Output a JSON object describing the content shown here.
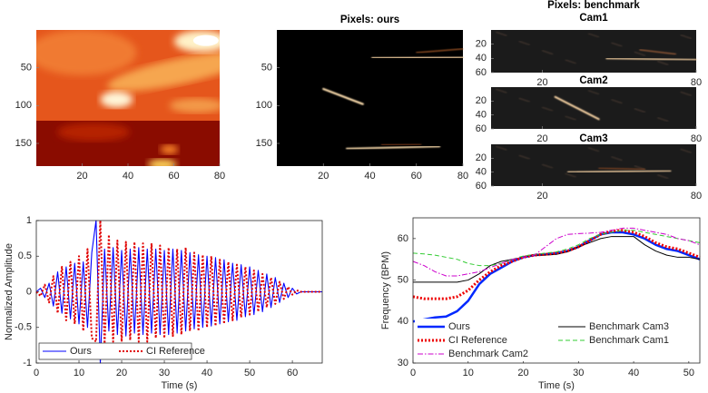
{
  "chart_data": [
    {
      "type": "heatmap",
      "colormap": "hot",
      "xlim": [
        0,
        80
      ],
      "ylim": [
        0,
        180
      ],
      "y_reversed": true,
      "xticks": [
        20,
        40,
        60,
        80
      ],
      "yticks": [
        50,
        100,
        150
      ]
    },
    {
      "type": "heatmap",
      "colormap": "hot",
      "title": "Pixels: ours",
      "xlim": [
        0,
        80
      ],
      "ylim": [
        0,
        180
      ],
      "y_reversed": true,
      "xticks": [
        20,
        40,
        60,
        80
      ],
      "yticks": [
        50,
        100,
        150
      ]
    },
    {
      "type": "heatmap",
      "colormap": "hot",
      "group_title": "Pixels: benchmark",
      "title": "Cam1",
      "xlim": [
        0,
        80
      ],
      "ylim": [
        0,
        60
      ],
      "y_reversed": true,
      "xticks": [
        20,
        80
      ],
      "yticks": [
        20,
        40,
        60
      ]
    },
    {
      "type": "heatmap",
      "colormap": "hot",
      "title": "Cam2",
      "xlim": [
        0,
        80
      ],
      "ylim": [
        0,
        60
      ],
      "y_reversed": true,
      "xticks": [
        20,
        80
      ],
      "yticks": [
        20,
        40,
        60
      ]
    },
    {
      "type": "heatmap",
      "colormap": "hot",
      "title": "Cam3",
      "xlim": [
        0,
        80
      ],
      "ylim": [
        0,
        60
      ],
      "y_reversed": true,
      "xticks": [
        20,
        80
      ],
      "yticks": [
        20,
        40,
        60
      ]
    },
    {
      "type": "line",
      "x_label": "Time (s)",
      "y_label": "Normalized Amplitude",
      "legend": "lower left",
      "legend_columns": 2,
      "xlim": [
        0,
        67
      ],
      "ylim": [
        -1,
        1
      ],
      "xticks": [
        0,
        10,
        20,
        30,
        40,
        50,
        60
      ],
      "yticks": [
        -1,
        -0.5,
        0,
        0.5,
        1
      ],
      "x": [
        0,
        1,
        2,
        3,
        4,
        5,
        6,
        7,
        8,
        9,
        10,
        11,
        12,
        13,
        14,
        15,
        16,
        17,
        18,
        19,
        20,
        21,
        22,
        23,
        24,
        25,
        26,
        27,
        28,
        29,
        30,
        31,
        32,
        33,
        34,
        35,
        36,
        37,
        38,
        39,
        40,
        41,
        42,
        43,
        44,
        45,
        46,
        47,
        48,
        49,
        50,
        51,
        52,
        53,
        54,
        55,
        56,
        57,
        58,
        59,
        60,
        61,
        62,
        63,
        64,
        65,
        66,
        67
      ],
      "series": [
        {
          "name": "Ours",
          "color": "#0000ff",
          "style": "solid",
          "width": 1.1,
          "values": [
            0,
            0.05,
            -0.08,
            0.12,
            -0.2,
            0.28,
            -0.3,
            0.35,
            -0.38,
            0.4,
            -0.45,
            0.42,
            -0.5,
            0.55,
            1,
            -1,
            0.6,
            -0.55,
            0.62,
            -0.6,
            0.58,
            -0.62,
            0.6,
            -0.58,
            0.62,
            -0.6,
            0.6,
            -0.58,
            0.6,
            -0.6,
            0.58,
            -0.6,
            0.6,
            -0.58,
            0.58,
            -0.55,
            0.55,
            -0.52,
            0.52,
            -0.5,
            0.5,
            -0.48,
            0.48,
            -0.45,
            0.45,
            -0.42,
            0.4,
            -0.4,
            0.38,
            -0.35,
            0.35,
            -0.32,
            0.3,
            -0.28,
            0.25,
            -0.22,
            0.2,
            -0.15,
            0.12,
            -0.08,
            0.05,
            -0.03,
            0,
            0,
            0,
            0,
            0,
            0
          ]
        },
        {
          "name": "CI Reference",
          "color": "#e00000",
          "style": "dotted",
          "width": 2,
          "values": [
            0,
            -0.06,
            0.1,
            -0.15,
            0.22,
            -0.3,
            0.35,
            -0.4,
            0.42,
            -0.45,
            0.5,
            -0.55,
            0.6,
            -0.65,
            -0.7,
            1,
            -0.75,
            0.8,
            -0.7,
            0.72,
            -0.7,
            0.7,
            -0.68,
            0.7,
            -0.7,
            0.68,
            -0.7,
            0.68,
            -0.65,
            0.65,
            -0.65,
            0.62,
            -0.62,
            0.6,
            -0.6,
            0.62,
            -0.55,
            0.55,
            -0.55,
            0.52,
            -0.5,
            0.5,
            -0.48,
            0.45,
            -0.45,
            0.42,
            -0.4,
            0.38,
            -0.36,
            0.35,
            -0.32,
            0.3,
            -0.28,
            0.25,
            -0.22,
            0.2,
            -0.17,
            0.14,
            -0.1,
            0.07,
            -0.04,
            0.02,
            0,
            0,
            0,
            0,
            0,
            0
          ]
        }
      ]
    },
    {
      "type": "line",
      "x_label": "Time (s)",
      "y_label": "Frequency (BPM)",
      "legend": "lower right",
      "legend_columns": 2,
      "xlim": [
        0,
        52
      ],
      "ylim": [
        30,
        65
      ],
      "xticks": [
        0,
        10,
        20,
        30,
        40,
        50
      ],
      "yticks": [
        30,
        40,
        50,
        60
      ],
      "x": [
        0,
        2,
        4,
        6,
        8,
        10,
        12,
        14,
        16,
        18,
        20,
        22,
        24,
        26,
        28,
        30,
        32,
        34,
        36,
        38,
        40,
        42,
        44,
        46,
        48,
        50,
        52
      ],
      "series": [
        {
          "name": "Ours",
          "color": "#0028ff",
          "style": "solid",
          "width": 2.5,
          "values": [
            40,
            40.5,
            41,
            41.2,
            42.5,
            45,
            49,
            51.5,
            53,
            54.5,
            55.5,
            56,
            56.2,
            56.5,
            57,
            58,
            59.5,
            61,
            61.5,
            61.5,
            61,
            60,
            58.5,
            57.5,
            57,
            56,
            55
          ]
        },
        {
          "name": "Benchmark Cam3",
          "color": "#000000",
          "style": "solid",
          "width": 1,
          "values": [
            49.5,
            49.5,
            49.5,
            49.5,
            49.5,
            50,
            51.5,
            53.5,
            54.5,
            55,
            55.5,
            56,
            56,
            56.2,
            56.8,
            58,
            59,
            60,
            60.5,
            60.5,
            60.5,
            58.5,
            57,
            56,
            55.5,
            55.5,
            55
          ]
        },
        {
          "name": "CI Reference",
          "color": "#ee0000",
          "style": "dotted",
          "width": 3,
          "values": [
            46,
            45.5,
            45.5,
            45.5,
            46,
            47.5,
            50,
            52,
            53.5,
            54.5,
            55.5,
            56,
            56.2,
            56.5,
            57,
            58,
            59.5,
            61,
            61.8,
            62,
            61.5,
            60.5,
            59,
            58,
            57.5,
            56.5,
            55.5
          ]
        },
        {
          "name": "Benchmark Cam1",
          "color": "#33cc33",
          "style": "dashed",
          "width": 1,
          "values": [
            56.5,
            56.3,
            56,
            55.5,
            55,
            54,
            53.5,
            53.5,
            54,
            55,
            55.8,
            56.2,
            56.5,
            56.8,
            57.5,
            58.5,
            60,
            61,
            61.5,
            62,
            62,
            61.5,
            61,
            60.5,
            60,
            59.5,
            59
          ]
        },
        {
          "name": "Benchmark Cam2",
          "color": "#cc00cc",
          "style": "dashdot",
          "width": 1,
          "values": [
            54.5,
            53.5,
            52,
            51,
            51,
            51.5,
            52,
            53,
            54,
            55,
            55.5,
            56,
            58,
            60,
            61,
            61.2,
            61.3,
            61.5,
            62,
            62.5,
            62.5,
            62,
            61.5,
            61,
            60,
            59.5,
            58.5
          ]
        }
      ]
    }
  ]
}
